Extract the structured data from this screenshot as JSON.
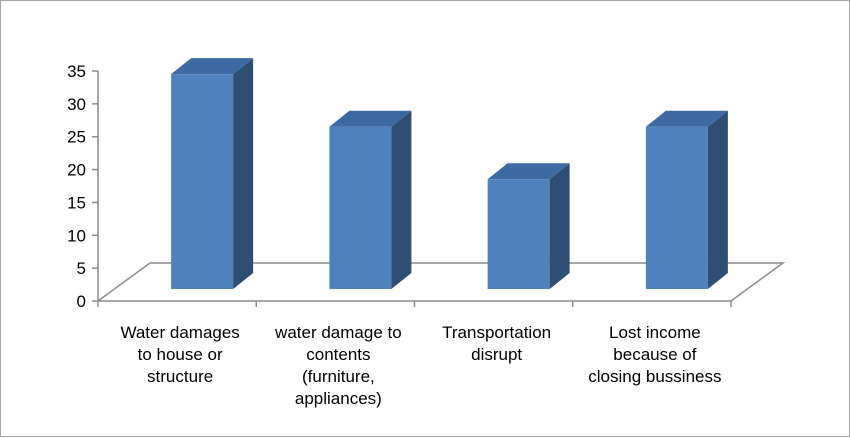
{
  "chart_data": {
    "type": "bar",
    "style": "3d-column",
    "categories": [
      [
        "Water damages",
        "to house or",
        "structure"
      ],
      [
        "water damage to",
        "contents",
        "(furniture,",
        "appliances)"
      ],
      [
        "Transportation",
        "disrupt"
      ],
      [
        "Lost income",
        "because of",
        "closing bussiness"
      ]
    ],
    "values": [
      33,
      25,
      17,
      25
    ],
    "ylim": [
      0,
      35
    ],
    "yticks": [
      0,
      5,
      10,
      15,
      20,
      25,
      30,
      35
    ],
    "title": "",
    "xlabel": "",
    "ylabel": "",
    "grid": false,
    "legend": "none",
    "colors": {
      "bar_front": "#4f81bd",
      "bar_side": "#2f4e74",
      "bar_top": "#3d6aa3",
      "floor_line": "#8c8c8c",
      "axis_line": "#8c8c8c"
    }
  }
}
